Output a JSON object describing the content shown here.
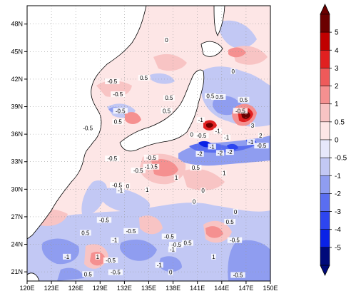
{
  "map": {
    "title": "",
    "projection": "cylindrical-equidistant",
    "lon_range": [
      120,
      150
    ],
    "lat_range": [
      20,
      50
    ],
    "grid": "dotted",
    "land_fill": "white-with-black-coastlines",
    "x_ticks": [
      "120E",
      "123E",
      "126E",
      "129E",
      "132E",
      "135E",
      "138E",
      "141E",
      "144E",
      "147E",
      "150E"
    ],
    "y_ticks": [
      "48N",
      "45N",
      "42N",
      "39N",
      "36N",
      "33N",
      "30N",
      "27N",
      "24N",
      "21N"
    ],
    "contour_labels": [
      {
        "text": "-0.5",
        "lon": 131.5,
        "lat": 38.4
      },
      {
        "text": "-0.5",
        "lon": 127.5,
        "lat": 36.5
      },
      {
        "text": "-0.5",
        "lon": 130.5,
        "lat": 41.6
      },
      {
        "text": "0.5",
        "lon": 134.4,
        "lat": 42.0
      },
      {
        "text": "-0.5",
        "lon": 131.2,
        "lat": 40.2
      },
      {
        "text": "0",
        "lon": 137.2,
        "lat": 46.1
      },
      {
        "text": "0.5",
        "lon": 137.5,
        "lat": 39.8
      },
      {
        "text": "0.5",
        "lon": 137.2,
        "lat": 38.4
      },
      {
        "text": "0.5",
        "lon": 131.2,
        "lat": 37.2
      },
      {
        "text": "0",
        "lon": 145.4,
        "lat": 42.7
      },
      {
        "text": "0.5",
        "lon": 146.7,
        "lat": 39.6
      },
      {
        "text": "-0.5",
        "lon": 146.3,
        "lat": 38.4
      },
      {
        "text": "-0.5",
        "lon": 143.6,
        "lat": 39.9
      },
      {
        "text": "0.5",
        "lon": 142.6,
        "lat": 40.0
      },
      {
        "text": "-1",
        "lon": 141.4,
        "lat": 37.4
      },
      {
        "text": "-0.5",
        "lon": 141.5,
        "lat": 35.7
      },
      {
        "text": "-1",
        "lon": 143.5,
        "lat": 36.2
      },
      {
        "text": "-1",
        "lon": 144.6,
        "lat": 35.5
      },
      {
        "text": "3",
        "lon": 147.8,
        "lat": 36.8
      },
      {
        "text": "-1",
        "lon": 147.6,
        "lat": 35.0
      },
      {
        "text": "2",
        "lon": 148.8,
        "lat": 35.7
      },
      {
        "text": "-0.5",
        "lon": 148.9,
        "lat": 34.6
      },
      {
        "text": "0",
        "lon": 140.3,
        "lat": 35.8
      },
      {
        "text": "-2",
        "lon": 141.3,
        "lat": 33.7
      },
      {
        "text": "-2",
        "lon": 145.0,
        "lat": 33.9
      },
      {
        "text": "-1",
        "lon": 142.8,
        "lat": 34.5
      },
      {
        "text": "-2",
        "lon": 143.8,
        "lat": 33.8
      },
      {
        "text": "-0.5",
        "lon": 135.3,
        "lat": 33.3
      },
      {
        "text": "-0.5",
        "lon": 130.5,
        "lat": 33.2
      },
      {
        "text": "0.5",
        "lon": 135.6,
        "lat": 32.3
      },
      {
        "text": "0.5",
        "lon": 140.8,
        "lat": 32.2
      },
      {
        "text": "1",
        "lon": 144.3,
        "lat": 31.6
      },
      {
        "text": "1",
        "lon": 138.4,
        "lat": 31.1
      },
      {
        "text": "-1",
        "lon": 134.8,
        "lat": 32.3
      },
      {
        "text": "-0.5",
        "lon": 133.7,
        "lat": 31.9
      },
      {
        "text": "-0.5",
        "lon": 131.1,
        "lat": 30.3
      },
      {
        "text": "0",
        "lon": 132.4,
        "lat": 30.2
      },
      {
        "text": "-1",
        "lon": 131.5,
        "lat": 29.7
      },
      {
        "text": "0",
        "lon": 141.7,
        "lat": 29.7
      },
      {
        "text": "1",
        "lon": 134.8,
        "lat": 29.8
      },
      {
        "text": "0",
        "lon": 140.6,
        "lat": 28.5
      },
      {
        "text": "0",
        "lon": 145.7,
        "lat": 27.4
      },
      {
        "text": "0.5",
        "lon": 145.0,
        "lat": 26.3
      },
      {
        "text": "-0.5",
        "lon": 129.5,
        "lat": 26.5
      },
      {
        "text": "-0.5",
        "lon": 132.8,
        "lat": 25.3
      },
      {
        "text": "0.5",
        "lon": 127.2,
        "lat": 25.1
      },
      {
        "text": "-1",
        "lon": 130.8,
        "lat": 24.3
      },
      {
        "text": "-0.5",
        "lon": 137.5,
        "lat": 24.7
      },
      {
        "text": "-0.5",
        "lon": 145.6,
        "lat": 24.3
      },
      {
        "text": "0.5",
        "lon": 139.8,
        "lat": 24.0
      },
      {
        "text": "-0.5",
        "lon": 138.4,
        "lat": 23.8
      },
      {
        "text": "-1",
        "lon": 137.9,
        "lat": 23.3
      },
      {
        "text": "1",
        "lon": 143.0,
        "lat": 22.5
      },
      {
        "text": "1",
        "lon": 128.7,
        "lat": 22.5
      },
      {
        "text": "-0.5",
        "lon": 130.3,
        "lat": 22.1
      },
      {
        "text": "-1",
        "lon": 124.9,
        "lat": 22.5
      },
      {
        "text": "-1",
        "lon": 136.3,
        "lat": 21.6
      },
      {
        "text": "0.5",
        "lon": 127.5,
        "lat": 20.6
      },
      {
        "text": "-0.5",
        "lon": 130.9,
        "lat": 20.8
      },
      {
        "text": "-0.5",
        "lon": 146.0,
        "lat": 20.5
      },
      {
        "text": "0",
        "lon": 137.7,
        "lat": 20.8
      }
    ]
  },
  "colorbar": {
    "levels": [
      "5",
      "4",
      "3",
      "2",
      "1",
      "0.5",
      "0",
      "-0.5",
      "-1",
      "-2",
      "-3",
      "-4",
      "-5"
    ],
    "colors": [
      "#6b0000",
      "#c00000",
      "#e02020",
      "#ee5a5a",
      "#f59090",
      "#f8c4c4",
      "#fde6e6",
      "#e6e8fb",
      "#c2c8f4",
      "#8f9df0",
      "#5a6ef0",
      "#2d45f0",
      "#0a22e6",
      "#000a7a"
    ],
    "arrow_top_color": "#6b0000",
    "arrow_bottom_color": "#000a7a"
  }
}
